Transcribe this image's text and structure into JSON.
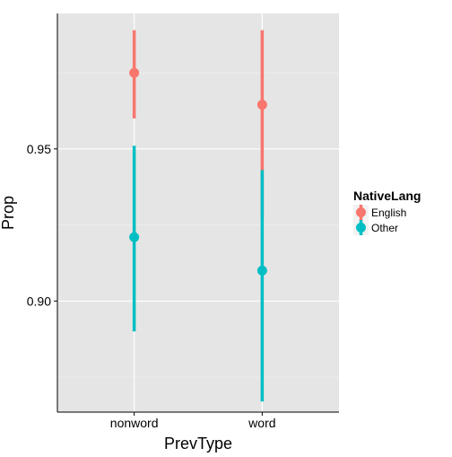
{
  "chart_data": {
    "type": "pointrange",
    "xlabel": "PrevType",
    "ylabel": "Prop",
    "categories": [
      "nonword",
      "word"
    ],
    "ylim": [
      0.8635,
      0.9945
    ],
    "yticks": [
      0.9,
      0.95
    ],
    "ytick_labels": [
      "0.90",
      "0.95"
    ],
    "grid": true,
    "legend": {
      "title": "NativeLang",
      "position": "right"
    },
    "series": [
      {
        "name": "English",
        "color": "#F8766D",
        "points": [
          {
            "x": "nonword",
            "y": 0.975,
            "ymin": 0.96,
            "ymax": 0.989
          },
          {
            "x": "word",
            "y": 0.9645,
            "ymin": 0.927,
            "ymax": 0.989
          }
        ]
      },
      {
        "name": "Other",
        "color": "#00BFC4",
        "points": [
          {
            "x": "nonword",
            "y": 0.921,
            "ymin": 0.89,
            "ymax": 0.951
          },
          {
            "x": "word",
            "y": 0.91,
            "ymin": 0.867,
            "ymax": 0.943
          }
        ]
      }
    ]
  }
}
